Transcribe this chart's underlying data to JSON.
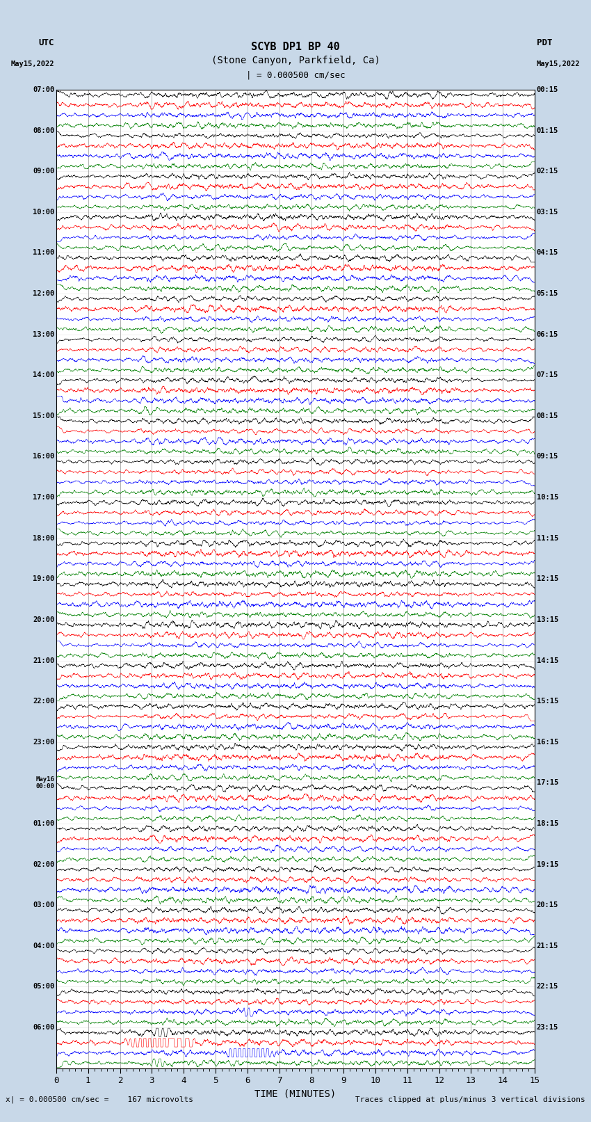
{
  "title_line1": "SCYB DP1 BP 40",
  "title_line2": "(Stone Canyon, Parkfield, Ca)",
  "scale_label": "= 0.000500 cm/sec",
  "bottom_label": "TIME (MINUTES)",
  "footer_left": "x| = 0.000500 cm/sec =    167 microvolts",
  "footer_right": "Traces clipped at plus/minus 3 vertical divisions",
  "xlabel_ticks": [
    0,
    1,
    2,
    3,
    4,
    5,
    6,
    7,
    8,
    9,
    10,
    11,
    12,
    13,
    14,
    15
  ],
  "utc_times": [
    "07:00",
    "08:00",
    "09:00",
    "10:00",
    "11:00",
    "12:00",
    "13:00",
    "14:00",
    "15:00",
    "16:00",
    "17:00",
    "18:00",
    "19:00",
    "20:00",
    "21:00",
    "22:00",
    "23:00",
    "May16\n00:00",
    "01:00",
    "02:00",
    "03:00",
    "04:00",
    "05:00",
    "06:00"
  ],
  "pdt_times": [
    "00:15",
    "01:15",
    "02:15",
    "03:15",
    "04:15",
    "05:15",
    "06:15",
    "07:15",
    "08:15",
    "09:15",
    "10:15",
    "11:15",
    "12:15",
    "13:15",
    "14:15",
    "15:15",
    "16:15",
    "17:15",
    "18:15",
    "19:15",
    "20:15",
    "21:15",
    "22:15",
    "23:15"
  ],
  "colors": [
    "black",
    "red",
    "blue",
    "green"
  ],
  "bg_color": "#c8d8e8",
  "plot_bg": "white",
  "n_rows": 24,
  "traces_per_row": 4,
  "figsize": [
    8.5,
    16.13
  ],
  "dpi": 100
}
